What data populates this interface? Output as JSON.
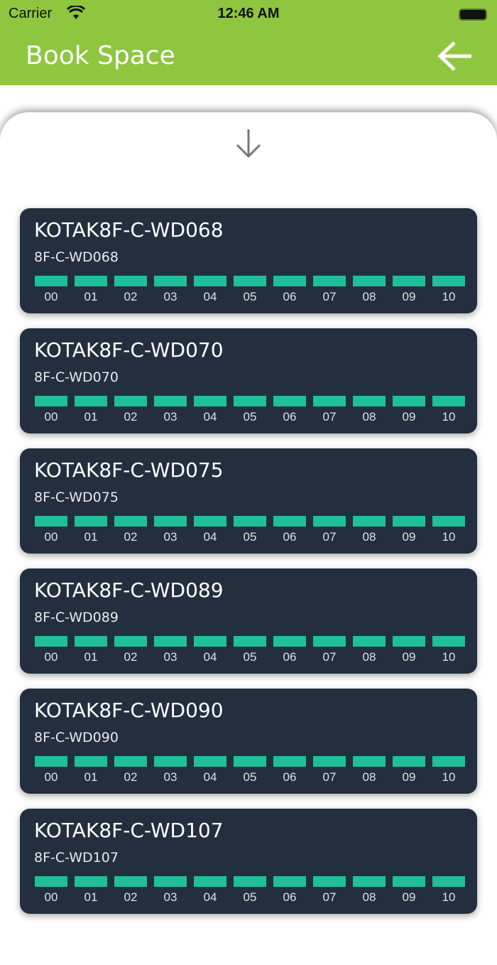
{
  "status_bar": {
    "carrier": "Carrier",
    "time": "12:46 AM"
  },
  "header": {
    "title": "Book Space",
    "back_icon": "arrow-left-icon"
  },
  "colors": {
    "header": "#8ec63f",
    "card": "#232f3f",
    "slot": "#1fbf9b"
  },
  "slots": [
    "00",
    "01",
    "02",
    "03",
    "04",
    "05",
    "06",
    "07",
    "08",
    "09",
    "10"
  ],
  "desks": [
    {
      "name": "KOTAK8F-C-WD068",
      "code": "8F-C-WD068"
    },
    {
      "name": "KOTAK8F-C-WD070",
      "code": "8F-C-WD070"
    },
    {
      "name": "KOTAK8F-C-WD075",
      "code": "8F-C-WD075"
    },
    {
      "name": "KOTAK8F-C-WD089",
      "code": "8F-C-WD089"
    },
    {
      "name": "KOTAK8F-C-WD090",
      "code": "8F-C-WD090"
    },
    {
      "name": "KOTAK8F-C-WD107",
      "code": "8F-C-WD107"
    }
  ]
}
